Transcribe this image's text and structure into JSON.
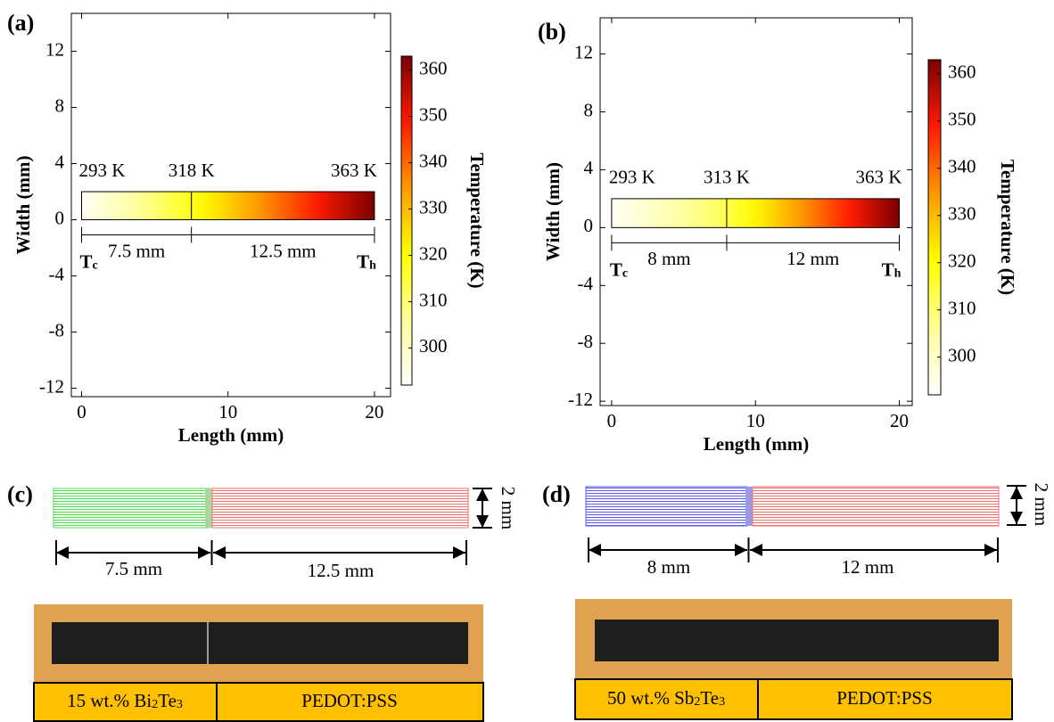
{
  "chart_data": [
    {
      "type": "strip",
      "panel": "(a)",
      "xlabel": "Length (mm)",
      "ylabel": "Width (mm)",
      "xlim": [
        -0.7,
        21.1
      ],
      "ylim": [
        -12.6,
        14.7
      ],
      "xticks": [
        0,
        10,
        20
      ],
      "yticks": [
        -12,
        -8,
        -4,
        0,
        4,
        8,
        12
      ],
      "colorbar_label": "Temperature (K)",
      "clim": [
        292,
        363
      ],
      "cticks": [
        300,
        310,
        320,
        330,
        340,
        350,
        360
      ],
      "colormap": [
        "#ffffff",
        "#ffff99",
        "#ffff00",
        "#ff9900",
        "#ff1a00",
        "#7a0000"
      ],
      "strip_x": [
        0,
        7.5,
        20
      ],
      "strip_y": [
        0,
        2
      ],
      "temperatures": [
        {
          "value": 293,
          "label": "293 K"
        },
        {
          "value": 318,
          "label": "318 K"
        },
        {
          "value": 363,
          "label": "363 K"
        }
      ],
      "segment_labels": [
        "7.5 mm",
        "12.5 mm"
      ],
      "cold_end": {
        "symbol": "T",
        "subscript": "c"
      },
      "hot_end": {
        "symbol": "T",
        "subscript": "h"
      }
    },
    {
      "type": "strip",
      "panel": "(b)",
      "xlabel": "Length (mm)",
      "ylabel": "Width (mm)",
      "xlim": [
        -0.8,
        20.9
      ],
      "ylim": [
        -12.3,
        14.5
      ],
      "xticks": [
        0,
        10,
        20
      ],
      "yticks": [
        -12,
        -8,
        -4,
        0,
        4,
        8,
        12
      ],
      "colorbar_label": "Temperature (K)",
      "clim": [
        292,
        363
      ],
      "cticks": [
        300,
        310,
        320,
        330,
        340,
        350,
        360
      ],
      "colormap": [
        "#ffffff",
        "#ffff99",
        "#ffff00",
        "#ff9900",
        "#ff1a00",
        "#7a0000"
      ],
      "strip_x": [
        0,
        8,
        20
      ],
      "strip_y": [
        0,
        2
      ],
      "temperatures": [
        {
          "value": 293,
          "label": "293 K"
        },
        {
          "value": 313,
          "label": "313 K"
        },
        {
          "value": 363,
          "label": "363 K"
        }
      ],
      "segment_labels": [
        "8 mm",
        "12 mm"
      ],
      "cold_end": {
        "symbol": "T",
        "subscript": "c"
      },
      "hot_end": {
        "symbol": "T",
        "subscript": "h"
      }
    }
  ],
  "samples": [
    {
      "panel": "(c)",
      "segment_labels": [
        "7.5 mm",
        "12.5 mm"
      ],
      "width_label": "2 mm",
      "materials": [
        {
          "parts": [
            "15 wt.% Bi",
            "2",
            "Te",
            "3"
          ]
        },
        {
          "parts": [
            "PEDOT:PSS"
          ]
        }
      ]
    },
    {
      "panel": "(d)",
      "segment_labels": [
        "8 mm",
        "12 mm"
      ],
      "width_label": "2 mm",
      "materials": [
        {
          "parts": [
            "50 wt.% Sb",
            "2",
            "Te",
            "3"
          ]
        },
        {
          "parts": [
            "PEDOT:PSS"
          ]
        }
      ]
    }
  ]
}
